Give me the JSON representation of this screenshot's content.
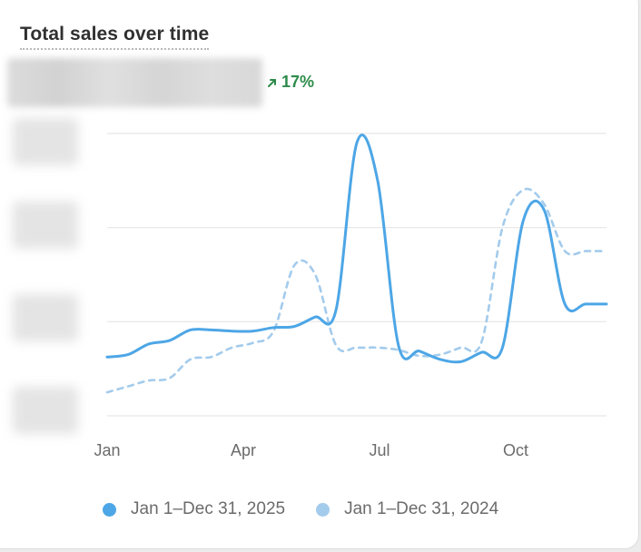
{
  "card": {
    "title": "Total sales over time",
    "change_text": "17%",
    "change_direction": "up",
    "change_color": "#2e8b4a"
  },
  "chart_data": {
    "type": "line",
    "title": "Total sales over time",
    "x_tick_labels": [
      "Jan",
      "Apr",
      "Jul",
      "Oct"
    ],
    "y_tick_labels_obscured": true,
    "total_value_obscured": true,
    "grid": "horizontal",
    "gridline_count": 4,
    "legend_position": "bottom",
    "x": [
      "Jan 1",
      "Jan 15",
      "Feb 1",
      "Feb 15",
      "Mar 1",
      "Mar 15",
      "Apr 1",
      "Apr 15",
      "May 1",
      "May 15",
      "Jun 1",
      "Jun 15",
      "Jul 1",
      "Jul 15",
      "Aug 1",
      "Aug 15",
      "Sep 1",
      "Sep 15",
      "Oct 1",
      "Oct 15",
      "Nov 1",
      "Nov 15",
      "Dec 1",
      "Dec 15",
      "Dec 31"
    ],
    "series": [
      {
        "name": "Jan 1–Dec 31, 2025",
        "style": "solid",
        "color": "#4da6e6",
        "values": [
          0.5,
          0.52,
          0.61,
          0.64,
          0.73,
          0.73,
          0.72,
          0.72,
          0.75,
          0.76,
          0.84,
          0.9,
          2.32,
          2.0,
          0.6,
          0.55,
          0.48,
          0.46,
          0.54,
          0.58,
          1.66,
          1.75,
          0.95,
          0.95,
          0.95
        ]
      },
      {
        "name": "Jan 1–Dec 31, 2024",
        "style": "dashed",
        "color": "#a3cbec",
        "values": [
          0.2,
          0.25,
          0.3,
          0.32,
          0.48,
          0.5,
          0.58,
          0.62,
          0.72,
          1.28,
          1.2,
          0.6,
          0.58,
          0.58,
          0.56,
          0.51,
          0.52,
          0.58,
          0.63,
          1.6,
          1.92,
          1.8,
          1.4,
          1.4,
          1.4
        ]
      }
    ]
  }
}
